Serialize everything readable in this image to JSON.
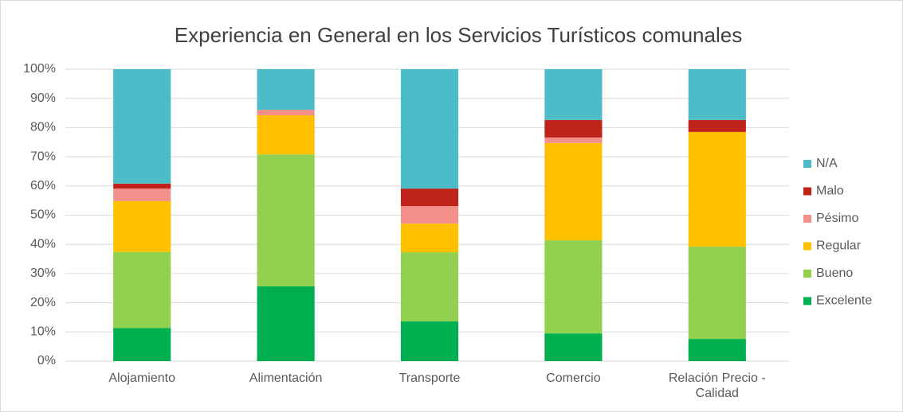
{
  "chart_data": {
    "type": "stacked_bar",
    "title": "Experiencia en General en los Servicios Turísticos comunales",
    "categories": [
      "Alojamiento",
      "Alimentación",
      "Transporte",
      "Comercio",
      "Relación Precio - Calidad"
    ],
    "series": [
      {
        "name": "Excelente",
        "color": "#00b050",
        "values": [
          11.3,
          25.6,
          13.6,
          9.5,
          7.6
        ]
      },
      {
        "name": "Bueno",
        "color": "#92d050",
        "values": [
          26.1,
          45.2,
          23.7,
          31.9,
          31.6
        ]
      },
      {
        "name": "Regular",
        "color": "#ffc000",
        "values": [
          17.4,
          13.4,
          9.8,
          33.3,
          39.3
        ]
      },
      {
        "name": "Pésimo",
        "color": "#f4908a",
        "values": [
          4.3,
          1.9,
          6.0,
          1.9,
          0
        ]
      },
      {
        "name": "Malo",
        "color": "#c0231a",
        "values": [
          1.7,
          0,
          6.0,
          6.0,
          4.1
        ]
      },
      {
        "name": "N/A",
        "color": "#4bbcc8",
        "values": [
          39.2,
          13.9,
          40.9,
          17.4,
          17.4
        ]
      }
    ],
    "ylim": [
      0,
      100
    ],
    "yticks": [
      {
        "value": 0,
        "label": "0%"
      },
      {
        "value": 10,
        "label": "10%"
      },
      {
        "value": 20,
        "label": "20%"
      },
      {
        "value": 30,
        "label": "30%"
      },
      {
        "value": 40,
        "label": "40%"
      },
      {
        "value": 50,
        "label": "50%"
      },
      {
        "value": 60,
        "label": "60%"
      },
      {
        "value": 70,
        "label": "70%"
      },
      {
        "value": 80,
        "label": "80%"
      },
      {
        "value": 90,
        "label": "90%"
      },
      {
        "value": 100,
        "label": "100%"
      }
    ],
    "grid": true,
    "legend": "right"
  }
}
